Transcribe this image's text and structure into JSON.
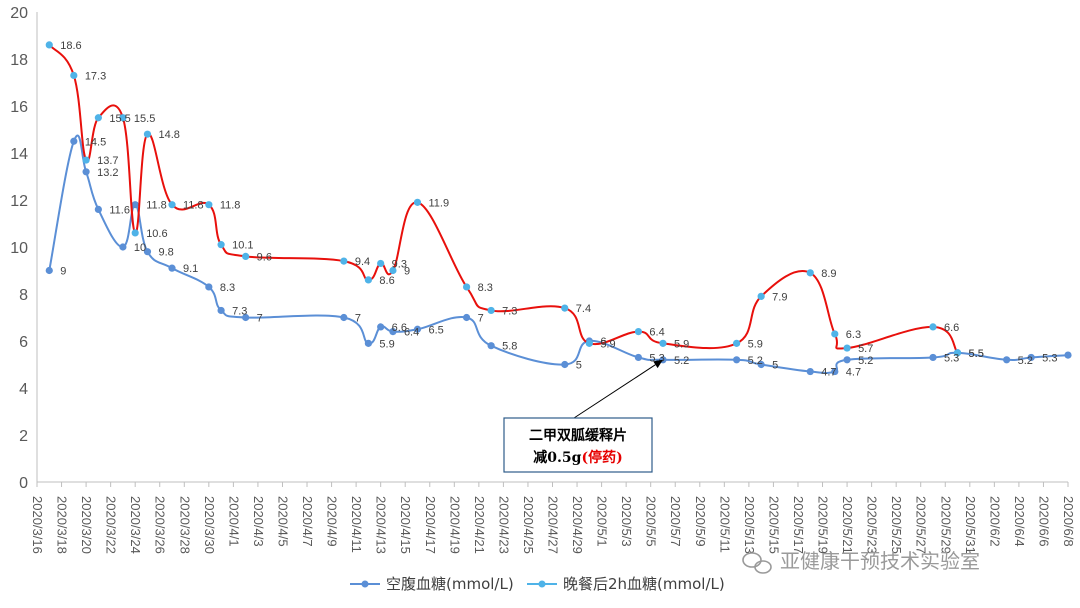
{
  "chart_data": {
    "type": "line",
    "ylim": [
      0,
      20
    ],
    "yticks": [
      0,
      2,
      4,
      6,
      8,
      10,
      12,
      14,
      16,
      18,
      20
    ],
    "xticks": [
      "2020/3/16",
      "2020/3/18",
      "2020/3/20",
      "2020/3/22",
      "2020/3/24",
      "2020/3/26",
      "2020/3/28",
      "2020/3/30",
      "2020/4/1",
      "2020/4/3",
      "2020/4/5",
      "2020/4/7",
      "2020/4/9",
      "2020/4/11",
      "2020/4/13",
      "2020/4/15",
      "2020/4/17",
      "2020/4/19",
      "2020/4/21",
      "2020/4/23",
      "2020/4/25",
      "2020/4/27",
      "2020/4/29",
      "2020/5/1",
      "2020/5/3",
      "2020/5/5",
      "2020/5/7",
      "2020/5/9",
      "2020/5/11",
      "2020/5/13",
      "2020/5/15",
      "2020/5/17",
      "2020/5/19",
      "2020/5/21",
      "2020/5/23",
      "2020/5/25",
      "2020/5/27",
      "2020/5/29",
      "2020/5/31",
      "2020/6/2",
      "2020/6/4",
      "2020/6/6",
      "2020/6/8"
    ],
    "x_range": [
      "2020/3/16",
      "2020/6/8"
    ],
    "grid": false,
    "legend_position": "bottom",
    "series": [
      {
        "name": "空腹血糖(mmol/L)",
        "color": "#5b8fd6",
        "points": [
          [
            "2020/3/17",
            9
          ],
          [
            "2020/3/19",
            14.5
          ],
          [
            "2020/3/20",
            13.2
          ],
          [
            "2020/3/21",
            11.6
          ],
          [
            "2020/3/23",
            10
          ],
          [
            "2020/3/24",
            11.8
          ],
          [
            "2020/3/25",
            9.8
          ],
          [
            "2020/3/27",
            9.1
          ],
          [
            "2020/3/30",
            8.3
          ],
          [
            "2020/3/31",
            7.3
          ],
          [
            "2020/4/2",
            7
          ],
          [
            "2020/4/10",
            7
          ],
          [
            "2020/4/12",
            5.9
          ],
          [
            "2020/4/13",
            6.6
          ],
          [
            "2020/4/14",
            6.4
          ],
          [
            "2020/4/16",
            6.5
          ],
          [
            "2020/4/20",
            7
          ],
          [
            "2020/4/22",
            5.8
          ],
          [
            "2020/4/28",
            5
          ],
          [
            "2020/4/30",
            6
          ],
          [
            "2020/5/4",
            5.3
          ],
          [
            "2020/5/6",
            5.2
          ],
          [
            "2020/5/12",
            5.2
          ],
          [
            "2020/5/14",
            5
          ],
          [
            "2020/5/18",
            4.7
          ],
          [
            "2020/5/20",
            4.7
          ],
          [
            "2020/5/21",
            5.2
          ],
          [
            "2020/5/28",
            5.3
          ],
          [
            "2020/5/30",
            5.5
          ],
          [
            "2020/6/3",
            5.2
          ],
          [
            "2020/6/5",
            5.3
          ],
          [
            "2020/6/8",
            5.4
          ]
        ]
      },
      {
        "name": "晚餐后2h血糖(mmol/L)",
        "color": "#e8100c",
        "marker_color": "#4fb3e8",
        "points": [
          [
            "2020/3/17",
            18.6
          ],
          [
            "2020/3/19",
            17.3
          ],
          [
            "2020/3/20",
            13.7
          ],
          [
            "2020/3/21",
            15.5
          ],
          [
            "2020/3/23",
            15.5
          ],
          [
            "2020/3/24",
            10.6
          ],
          [
            "2020/3/25",
            14.8
          ],
          [
            "2020/3/27",
            11.8
          ],
          [
            "2020/3/30",
            11.8
          ],
          [
            "2020/3/31",
            10.1
          ],
          [
            "2020/4/2",
            9.6
          ],
          [
            "2020/4/10",
            9.4
          ],
          [
            "2020/4/12",
            8.6
          ],
          [
            "2020/4/13",
            9.3
          ],
          [
            "2020/4/14",
            9
          ],
          [
            "2020/4/16",
            11.9
          ],
          [
            "2020/4/20",
            8.3
          ],
          [
            "2020/4/22",
            7.3
          ],
          [
            "2020/4/28",
            7.4
          ],
          [
            "2020/4/30",
            5.9
          ],
          [
            "2020/5/4",
            6.4
          ],
          [
            "2020/5/6",
            5.9
          ],
          [
            "2020/5/12",
            5.9
          ],
          [
            "2020/5/14",
            7.9
          ],
          [
            "2020/5/18",
            8.9
          ],
          [
            "2020/5/20",
            6.3
          ],
          [
            "2020/5/21",
            5.7
          ],
          [
            "2020/5/28",
            6.6
          ],
          [
            "2020/5/30",
            5.5
          ]
        ]
      }
    ],
    "labels": {
      "fasting": [
        {
          "i": 0,
          "t": "9"
        },
        {
          "i": 1,
          "t": "14.5"
        },
        {
          "i": 2,
          "t": "13.2"
        },
        {
          "i": 3,
          "t": "11.6"
        },
        {
          "i": 4,
          "t": "10"
        },
        {
          "i": 5,
          "t": "11.8"
        },
        {
          "i": 6,
          "t": "9.8"
        },
        {
          "i": 7,
          "t": "9.1"
        },
        {
          "i": 8,
          "t": "8.3"
        },
        {
          "i": 9,
          "t": "7.3"
        },
        {
          "i": 10,
          "t": "7"
        },
        {
          "i": 11,
          "t": "7"
        },
        {
          "i": 12,
          "t": "5.9"
        },
        {
          "i": 13,
          "t": "6.6"
        },
        {
          "i": 14,
          "t": "6.4"
        },
        {
          "i": 15,
          "t": "6.5"
        },
        {
          "i": 16,
          "t": "7"
        },
        {
          "i": 17,
          "t": "5.8"
        },
        {
          "i": 18,
          "t": "5"
        },
        {
          "i": 19,
          "t": "6"
        },
        {
          "i": 20,
          "t": "5.3"
        },
        {
          "i": 21,
          "t": "5.2"
        },
        {
          "i": 22,
          "t": "5.2"
        },
        {
          "i": 23,
          "t": "5"
        },
        {
          "i": 24,
          "t": "4.7"
        },
        {
          "i": 25,
          "t": "4.7"
        },
        {
          "i": 26,
          "t": "5.2"
        },
        {
          "i": 27,
          "t": "5.3"
        },
        {
          "i": 28,
          "t": "5.5"
        },
        {
          "i": 29,
          "t": "5.2"
        },
        {
          "i": 30,
          "t": "5.3"
        }
      ],
      "post": [
        {
          "i": 0,
          "t": "18.6"
        },
        {
          "i": 1,
          "t": "17.3"
        },
        {
          "i": 2,
          "t": "13.7"
        },
        {
          "i": 3,
          "t": "15.5"
        },
        {
          "i": 4,
          "t": "15.5"
        },
        {
          "i": 5,
          "t": "10.6"
        },
        {
          "i": 6,
          "t": "14.8"
        },
        {
          "i": 7,
          "t": "11.8"
        },
        {
          "i": 8,
          "t": "11.8"
        },
        {
          "i": 9,
          "t": "10.1"
        },
        {
          "i": 10,
          "t": "9.6"
        },
        {
          "i": 11,
          "t": "9.4"
        },
        {
          "i": 12,
          "t": "8.6"
        },
        {
          "i": 13,
          "t": "9.3"
        },
        {
          "i": 14,
          "t": "9"
        },
        {
          "i": 15,
          "t": "11.9"
        },
        {
          "i": 16,
          "t": "8.3"
        },
        {
          "i": 17,
          "t": "7.3"
        },
        {
          "i": 18,
          "t": "7.4"
        },
        {
          "i": 19,
          "t": "5.9"
        },
        {
          "i": 20,
          "t": "6.4"
        },
        {
          "i": 21,
          "t": "5.9"
        },
        {
          "i": 22,
          "t": "5.9"
        },
        {
          "i": 23,
          "t": "7.9"
        },
        {
          "i": 24,
          "t": "8.9"
        },
        {
          "i": 25,
          "t": "6.3"
        },
        {
          "i": 26,
          "t": "5.7"
        },
        {
          "i": 27,
          "t": "6.6"
        },
        {
          "i": 28,
          "t": "5.5"
        }
      ]
    },
    "annotation": {
      "line1": "二甲双胍缓释片",
      "line2_prefix": "减0.5g",
      "line2_red": "(停药)",
      "points_to": [
        "2020/5/6",
        5.2
      ]
    }
  },
  "watermark": "亚健康干预技术实验室",
  "colors": {
    "axis": "#bfbfbf",
    "tick_text": "#595959",
    "annotation_border": "#2e5c8a",
    "annotation_red": "#e60000"
  }
}
